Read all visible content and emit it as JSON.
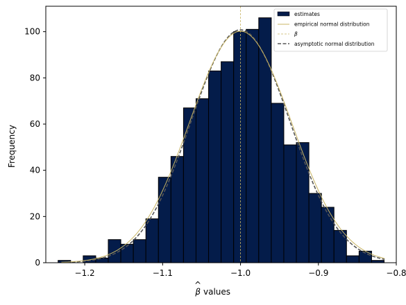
{
  "chart_data": {
    "type": "bar",
    "xlabel": "values",
    "xlabel_symbol": "β",
    "ylabel": "Frequency",
    "xlim": [
      -1.25,
      -0.8
    ],
    "ylim": [
      0,
      111
    ],
    "xticks": [
      -1.2,
      -1.1,
      -1.0,
      -0.9,
      -0.8
    ],
    "xtick_labels": [
      "−1.2",
      "−1.1",
      "−1.0",
      "−0.9",
      "−0.8"
    ],
    "yticks": [
      0,
      20,
      40,
      60,
      80,
      100
    ],
    "ytick_labels": [
      "0",
      "20",
      "40",
      "60",
      "80",
      "100"
    ],
    "legend_position": "top-right",
    "histogram": {
      "name": "estimates",
      "color": "#041c4a",
      "edge_color": "#000000",
      "bin_start": -1.2342,
      "bin_width": 0.0161,
      "counts": [
        1,
        0,
        3,
        2,
        10,
        8,
        10,
        19,
        37,
        46,
        67,
        71,
        83,
        87,
        100,
        101,
        106,
        69,
        51,
        52,
        30,
        24,
        14,
        3,
        5,
        1
      ]
    },
    "empirical_normal": {
      "name": "empirical normal distribution",
      "color": "#c8b463",
      "mean": -1.0,
      "sd": 0.0655,
      "peak": 100.2
    },
    "true_value_line": {
      "name": "β",
      "color": "#c8b463",
      "x": -1.0
    },
    "asymptotic_normal": {
      "name": "asymptotic normal distribution",
      "color": "#555555",
      "mean": -1.0,
      "sd": 0.0635,
      "peak": 100.8
    }
  }
}
